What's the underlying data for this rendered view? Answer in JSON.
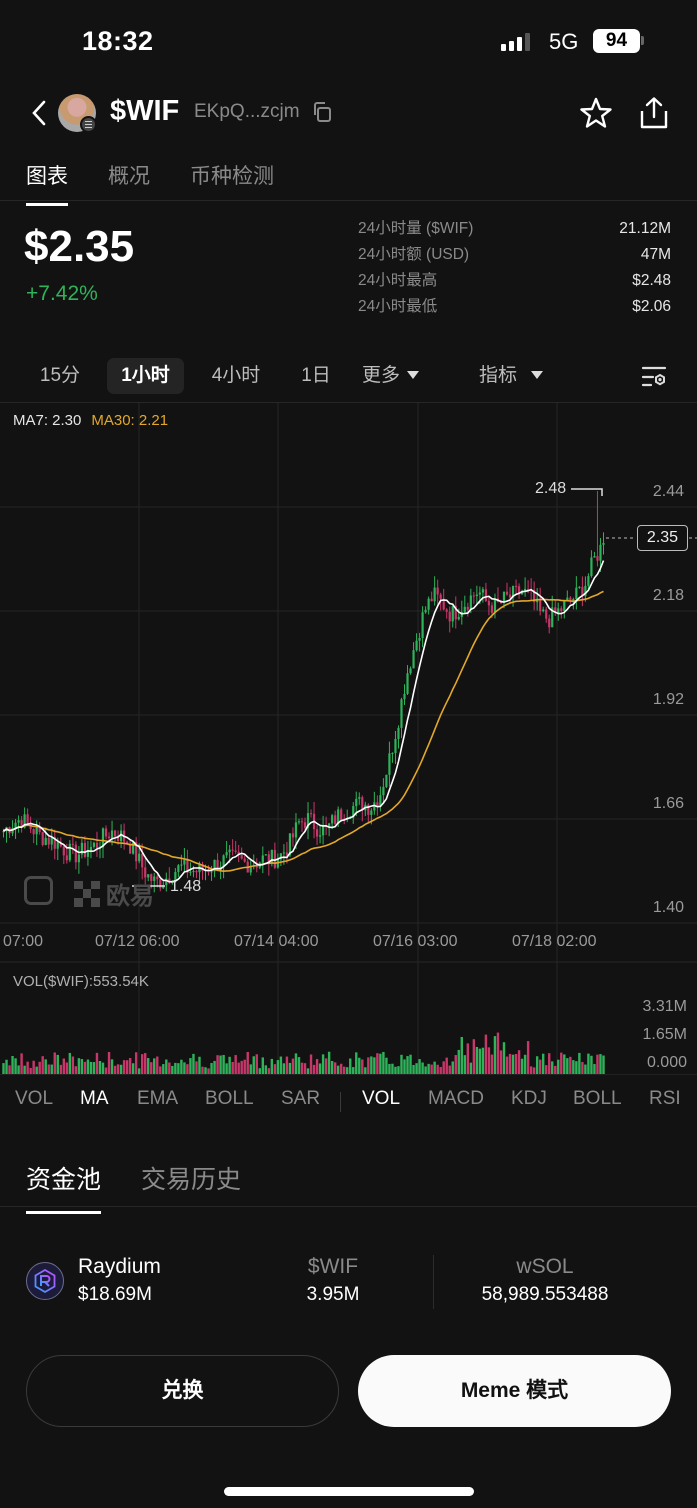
{
  "status_bar": {
    "time": "18:32",
    "network": "5G",
    "battery": "94"
  },
  "header": {
    "token_symbol": "$WIF",
    "token_address": "EKpQ...zcjm"
  },
  "top_tabs": [
    {
      "label": "图表",
      "active": true
    },
    {
      "label": "概况",
      "active": false
    },
    {
      "label": "币种检测",
      "active": false
    }
  ],
  "price_block": {
    "price": "$2.35",
    "change": "+7.42%",
    "stats": [
      {
        "label": "24小时量 ($WIF)",
        "value": "21.12M"
      },
      {
        "label": "24小时额 (USD)",
        "value": "47M"
      },
      {
        "label": "24小时最高",
        "value": "$2.48"
      },
      {
        "label": "24小时最低",
        "value": "$2.06"
      }
    ]
  },
  "timeframes": [
    {
      "label": "15分",
      "active": false
    },
    {
      "label": "1小时",
      "active": true
    },
    {
      "label": "4小时",
      "active": false
    },
    {
      "label": "1日",
      "active": false
    },
    {
      "label": "更多",
      "active": false,
      "dropdown": true
    },
    {
      "label": "指标",
      "active": false,
      "dropdown": true
    }
  ],
  "ma_legend": {
    "ma7": "MA7: 2.30",
    "ma30": "MA30: 2.21"
  },
  "colors": {
    "up": "#2fb35a",
    "down": "#c8376a",
    "ma7": "#ffffff",
    "ma30": "#e2a82a",
    "grid": "#262626",
    "background": "#121212"
  },
  "chart_labels": {
    "high_marker": "2.48",
    "low_marker": "1.48",
    "current_price": "2.35",
    "watermark": "欧易"
  },
  "volume": {
    "title": "VOL($WIF):553.54K",
    "axis": [
      "3.31M",
      "1.65M",
      "0.000"
    ]
  },
  "indicator_tabs": {
    "main": [
      {
        "label": "VOL",
        "active": false
      },
      {
        "label": "MA",
        "active": true
      },
      {
        "label": "EMA",
        "active": false
      },
      {
        "label": "BOLL",
        "active": false
      },
      {
        "label": "SAR",
        "active": false
      }
    ],
    "sub": [
      {
        "label": "VOL",
        "active": true
      },
      {
        "label": "MACD",
        "active": false
      },
      {
        "label": "KDJ",
        "active": false
      },
      {
        "label": "BOLL",
        "active": false
      },
      {
        "label": "RSI",
        "active": false
      }
    ]
  },
  "pool_tabs": [
    {
      "label": "资金池",
      "active": true
    },
    {
      "label": "交易历史",
      "active": false
    }
  ],
  "pool": {
    "name": "Raydium",
    "tvl": "$18.69M",
    "col1_header": "$WIF",
    "col1_value": "3.95M",
    "col2_header": "wSOL",
    "col2_value": "58,989.553488"
  },
  "buttons": {
    "swap": "兑换",
    "meme_mode": "Meme 模式"
  },
  "chart_data": {
    "type": "candlestick",
    "title": "$WIF 1小时",
    "interval": "1h",
    "x_ticks": [
      "07:00",
      "07/12 06:00",
      "07/14 04:00",
      "07/16 03:00",
      "07/18 02:00"
    ],
    "y_ticks": [
      2.44,
      2.18,
      1.92,
      1.66,
      1.4
    ],
    "ylim": [
      1.4,
      2.44
    ],
    "grid": true,
    "series": [
      {
        "name": "MA7",
        "last": 2.3
      },
      {
        "name": "MA30",
        "last": 2.21
      }
    ],
    "close_path": [
      1.63,
      1.65,
      1.66,
      1.64,
      1.62,
      1.61,
      1.6,
      1.58,
      1.57,
      1.58,
      1.59,
      1.61,
      1.63,
      1.62,
      1.6,
      1.56,
      1.52,
      1.5,
      1.51,
      1.53,
      1.54,
      1.53,
      1.53,
      1.54,
      1.55,
      1.56,
      1.56,
      1.55,
      1.55,
      1.56,
      1.56,
      1.57,
      1.6,
      1.65,
      1.66,
      1.64,
      1.63,
      1.66,
      1.68,
      1.69,
      1.7,
      1.69,
      1.72,
      1.8,
      1.9,
      2.02,
      2.1,
      2.18,
      2.22,
      2.2,
      2.17,
      2.19,
      2.21,
      2.23,
      2.2,
      2.19,
      2.21,
      2.22,
      2.23,
      2.21,
      2.17,
      2.16,
      2.18,
      2.2,
      2.22,
      2.25,
      2.31,
      2.35
    ],
    "high": 2.48,
    "low": 1.48,
    "last_price": 2.35,
    "volume_axis": [
      "0.000",
      "1.65M",
      "3.31M"
    ],
    "volume_current": "553.54K"
  }
}
